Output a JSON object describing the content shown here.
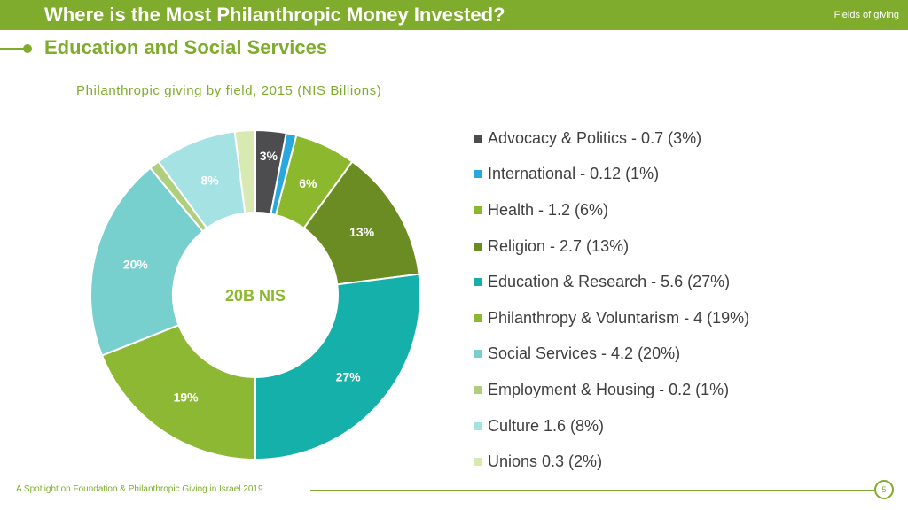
{
  "header": {
    "title": "Where is the Most Philanthropic Money Invested?",
    "right_label": "Fields of giving"
  },
  "section": {
    "title": "Education and Social Services"
  },
  "chart_data": {
    "type": "pie",
    "title": "Philanthropic giving by field, 2015 (NIS Billions)",
    "center_label": "20B NIS",
    "unit": "NIS Billions",
    "slices": [
      {
        "name": "Advocacy & Politics",
        "value": 0.7,
        "percent": 3,
        "label": "3%",
        "legend": "Advocacy & Politics - 0.7 (3%)",
        "color": "#4d4d4f",
        "label_color": "#ffffff"
      },
      {
        "name": "International",
        "value": 0.12,
        "percent": 1,
        "label": "",
        "legend": "International - 0.12 (1%)",
        "color": "#29a8e0",
        "label_color": "#ffffff"
      },
      {
        "name": "Health",
        "value": 1.2,
        "percent": 6,
        "label": "6%",
        "legend": "Health - 1.2 (6%)",
        "color": "#8cb82e",
        "label_color": "#ffffff"
      },
      {
        "name": "Religion",
        "value": 2.7,
        "percent": 13,
        "label": "13%",
        "legend": "Religion - 2.7 (13%)",
        "color": "#6b8c23",
        "label_color": "#ffffff"
      },
      {
        "name": "Education & Research",
        "value": 5.6,
        "percent": 27,
        "label": "27%",
        "legend": "Education & Research - 5.6 (27%)",
        "color": "#16b0ab",
        "label_color": "#ffffff"
      },
      {
        "name": "Philanthropy & Voluntarism",
        "value": 4,
        "percent": 19,
        "label": "19%",
        "legend": "Philanthropy & Voluntarism - 4 (19%)",
        "color": "#8db834",
        "label_color": "#ffffff"
      },
      {
        "name": "Social Services",
        "value": 4.2,
        "percent": 20,
        "label": "20%",
        "legend": "Social Services - 4.2 (20%)",
        "color": "#78d0ce",
        "label_color": "#ffffff"
      },
      {
        "name": "Employment & Housing",
        "value": 0.2,
        "percent": 1,
        "label": "",
        "legend": "Employment & Housing - 0.2 (1%)",
        "color": "#b0cf7c",
        "label_color": "#ffffff"
      },
      {
        "name": "Culture",
        "value": 1.6,
        "percent": 8,
        "label": "8%",
        "legend": "Culture 1.6 (8%)",
        "color": "#a5e2e3",
        "label_color": "#ffffff"
      },
      {
        "name": "Unions",
        "value": 0.3,
        "percent": 2,
        "label": "",
        "legend": "Unions 0.3 (2%)",
        "color": "#d8eab2",
        "label_color": "#ffffff"
      }
    ]
  },
  "footer": {
    "text": "A Spotlight on Foundation & Philanthropic Giving in Israel 2019",
    "page": "5"
  },
  "colors": {
    "accent": "#7fac2c",
    "center_text": "#8cb82e"
  }
}
